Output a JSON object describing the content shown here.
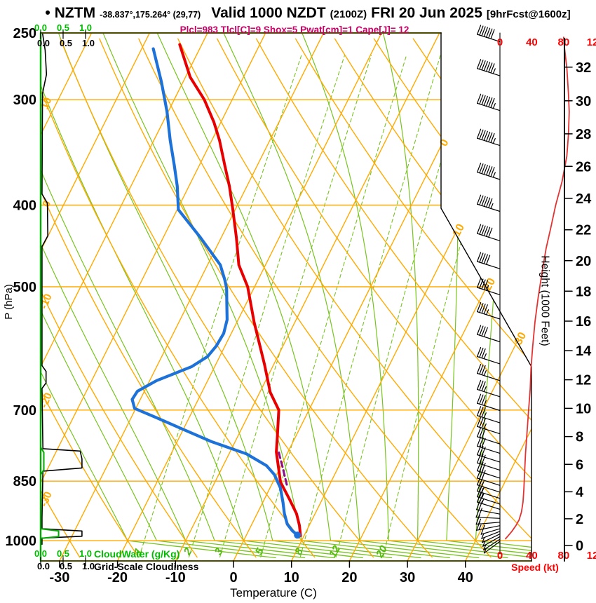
{
  "header": {
    "bullet": "•",
    "model": "NZTM",
    "coords": "-38.837°,175.264° (29,77)",
    "valid": "Valid 1000 NZDT",
    "zulu": "(2100Z)",
    "date": "FRI 20 Jun 2025",
    "fcst": "[9hrFcst@1600z]"
  },
  "params_line": "Plcl=983 Tlcl[C]=9 Shox=5 Pwat[cm]=1 Cape[J]= 12",
  "colors": {
    "orange": "#FFAA00",
    "green_line": "#77C41E",
    "green_text": "#00BB00",
    "mixing_label": "#55BB11",
    "border_olive": "#4B4B00",
    "border_green": "#00AA00",
    "temp_curve": "#E80000",
    "dew_curve": "#1C72D9",
    "parcel": "#8A0D8A",
    "speed_curve": "#E23333",
    "speed_text": "#FF0000",
    "params_pink": "#CC0066",
    "black": "#000000"
  },
  "axes": {
    "pressure": {
      "label": "P (hPa)",
      "ticks": [
        250,
        300,
        400,
        500,
        700,
        850,
        1000
      ]
    },
    "temperature": {
      "label": "Temperature (C)",
      "ticks": [
        -30,
        -20,
        -10,
        0,
        10,
        20,
        30,
        40
      ]
    },
    "height": {
      "label": "Height (1000 Feet)",
      "ticks": [
        0,
        2,
        4,
        6,
        8,
        10,
        12,
        14,
        16,
        18,
        20,
        22,
        24,
        26,
        28,
        30,
        32
      ]
    },
    "speed": {
      "label": "Speed (kt)",
      "ticks": [
        0,
        40,
        80,
        120
      ]
    },
    "cloud_scales": {
      "cloudwater_label": "CloudWater (g/Kg)",
      "grid_label": "Grid-Scale Cloudiness",
      "ticks": [
        "0.0",
        "0.5",
        "1.0"
      ]
    }
  },
  "chart_data": {
    "type": "skewt-log-p-sounding",
    "pressure_range_hpa": [
      250,
      1046
    ],
    "temp_axis_range_c": [
      -33,
      40
    ],
    "isotherms_c": [
      -100,
      -90,
      -80,
      -70,
      -60,
      -50,
      -40,
      -30,
      -20,
      -10,
      0,
      10,
      20,
      30,
      40
    ],
    "isotherm_border_labels_c": [
      0,
      10,
      20,
      30
    ],
    "dry_adiabats_c": [
      -40,
      -30,
      -20,
      -10,
      0,
      10,
      20,
      30,
      40,
      50,
      60,
      70,
      80,
      90,
      100,
      110,
      120
    ],
    "dry_adiabat_edge_labels_c": [
      10,
      0,
      -10,
      -20,
      -30
    ],
    "moist_adiabats_c": [
      -20,
      -15,
      -10,
      -5,
      0,
      5,
      10,
      15,
      20,
      25,
      30,
      35,
      40
    ],
    "mixing_ratio_g_kg": [
      1,
      2,
      3,
      5,
      8,
      12,
      20
    ],
    "pressure_grid_hpa": [
      300,
      400,
      500,
      700,
      850,
      1000
    ],
    "temperature_profile_p_t": [
      [
        258,
        -53.8
      ],
      [
        282,
        -49.2
      ],
      [
        300,
        -44.8
      ],
      [
        319,
        -41.2
      ],
      [
        335,
        -38.7
      ],
      [
        359,
        -35.6
      ],
      [
        380,
        -33.0
      ],
      [
        404,
        -30.5
      ],
      [
        437,
        -27.4
      ],
      [
        471,
        -24.6
      ],
      [
        500,
        -21.2
      ],
      [
        551,
        -17.0
      ],
      [
        618,
        -11.6
      ],
      [
        667,
        -8.2
      ],
      [
        700,
        -5.2
      ],
      [
        749,
        -3.3
      ],
      [
        785,
        -2.0
      ],
      [
        815,
        -0.5
      ],
      [
        852,
        1.3
      ],
      [
        894,
        4.4
      ],
      [
        929,
        6.8
      ],
      [
        959,
        8.3
      ],
      [
        987,
        9.4
      ]
    ],
    "dewpoint_profile_p_t": [
      [
        261,
        -58.0
      ],
      [
        286,
        -53.7
      ],
      [
        310,
        -50.2
      ],
      [
        335,
        -47.2
      ],
      [
        359,
        -44.3
      ],
      [
        380,
        -42.0
      ],
      [
        405,
        -39.8
      ],
      [
        437,
        -33.6
      ],
      [
        471,
        -27.8
      ],
      [
        490,
        -25.8
      ],
      [
        502,
        -24.7
      ],
      [
        524,
        -23.3
      ],
      [
        547,
        -21.9
      ],
      [
        568,
        -21.3
      ],
      [
        588,
        -21.5
      ],
      [
        605,
        -22.1
      ],
      [
        622,
        -24.0
      ],
      [
        646,
        -28.8
      ],
      [
        665,
        -31.2
      ],
      [
        680,
        -31.4
      ],
      [
        697,
        -30.2
      ],
      [
        715,
        -25.6
      ],
      [
        734,
        -21.0
      ],
      [
        763,
        -14.1
      ],
      [
        789,
        -7.0
      ],
      [
        815,
        -2.5
      ],
      [
        835,
        -0.4
      ],
      [
        866,
        1.8
      ],
      [
        901,
        3.5
      ],
      [
        929,
        4.7
      ],
      [
        956,
        6.1
      ],
      [
        974,
        7.6
      ],
      [
        984,
        8.7
      ]
    ],
    "parcel_path_p_t": [
      [
        858,
        2.6
      ],
      [
        838,
        1.5
      ],
      [
        815,
        0.2
      ],
      [
        795,
        -1.0
      ],
      [
        783,
        -1.7
      ]
    ],
    "surface_point": {
      "p": 985,
      "t": 8.8
    },
    "wind_speed_profile_p_kt": [
      [
        253,
        80
      ],
      [
        260,
        81
      ],
      [
        275,
        84
      ],
      [
        295,
        86
      ],
      [
        310,
        87
      ],
      [
        330,
        86
      ],
      [
        350,
        84
      ],
      [
        375,
        78
      ],
      [
        400,
        70
      ],
      [
        425,
        64
      ],
      [
        450,
        58
      ],
      [
        480,
        53
      ],
      [
        515,
        48
      ],
      [
        550,
        44
      ],
      [
        590,
        41
      ],
      [
        625,
        39
      ],
      [
        660,
        38
      ],
      [
        700,
        36
      ],
      [
        745,
        34
      ],
      [
        790,
        32
      ],
      [
        830,
        31
      ],
      [
        870,
        30
      ],
      [
        900,
        29
      ],
      [
        925,
        27
      ],
      [
        945,
        24
      ],
      [
        960,
        20
      ],
      [
        975,
        15
      ],
      [
        985,
        11
      ],
      [
        995,
        7
      ]
    ],
    "wind_barbs_p_kt": [
      [
        256,
        80
      ],
      [
        281,
        86
      ],
      [
        309,
        87
      ],
      [
        340,
        85
      ],
      [
        373,
        79
      ],
      [
        407,
        68
      ],
      [
        441,
        60
      ],
      [
        476,
        53
      ],
      [
        511,
        48
      ],
      [
        546,
        44
      ],
      [
        581,
        41
      ],
      [
        617,
        39
      ],
      [
        646,
        38
      ],
      [
        675,
        37
      ],
      [
        701,
        36
      ],
      [
        725,
        35
      ],
      [
        747,
        34
      ],
      [
        768,
        33
      ],
      [
        788,
        32
      ],
      [
        807,
        31
      ],
      [
        825,
        31
      ],
      [
        843,
        30
      ],
      [
        860,
        30
      ],
      [
        876,
        29
      ],
      [
        891,
        28
      ],
      [
        905,
        27
      ],
      [
        918,
        25
      ],
      [
        930,
        23
      ],
      [
        941,
        21
      ],
      [
        951,
        18
      ],
      [
        960,
        14
      ],
      [
        968,
        11
      ],
      [
        975,
        8
      ],
      [
        982,
        7
      ],
      [
        989,
        6
      ],
      [
        996,
        5
      ],
      [
        1002,
        4
      ]
    ],
    "cloud_water_profile_p_v": [
      [
        250,
        0
      ],
      [
        775,
        0
      ],
      [
        786,
        0.07
      ],
      [
        824,
        0.07
      ],
      [
        835,
        0
      ],
      [
        968,
        0
      ],
      [
        974,
        0.4
      ],
      [
        989,
        0.4
      ],
      [
        994,
        0
      ],
      [
        1012,
        0
      ]
    ],
    "grid_cloudiness_profile_p_v": [
      [
        250,
        0.04
      ],
      [
        262,
        0.1
      ],
      [
        280,
        0.13
      ],
      [
        295,
        0.04
      ],
      [
        388,
        0.03
      ],
      [
        398,
        0.15
      ],
      [
        435,
        0.16
      ],
      [
        448,
        0.03
      ],
      [
        620,
        0.03
      ],
      [
        630,
        0.12
      ],
      [
        650,
        0.12
      ],
      [
        660,
        0.03
      ],
      [
        778,
        0.05
      ],
      [
        783,
        0.88
      ],
      [
        800,
        0.92
      ],
      [
        820,
        0.92
      ],
      [
        827,
        0.05
      ],
      [
        940,
        0.03
      ],
      [
        968,
        0.03
      ],
      [
        974,
        0.92
      ],
      [
        988,
        0.92
      ],
      [
        993,
        0.03
      ],
      [
        1010,
        0.03
      ]
    ]
  }
}
